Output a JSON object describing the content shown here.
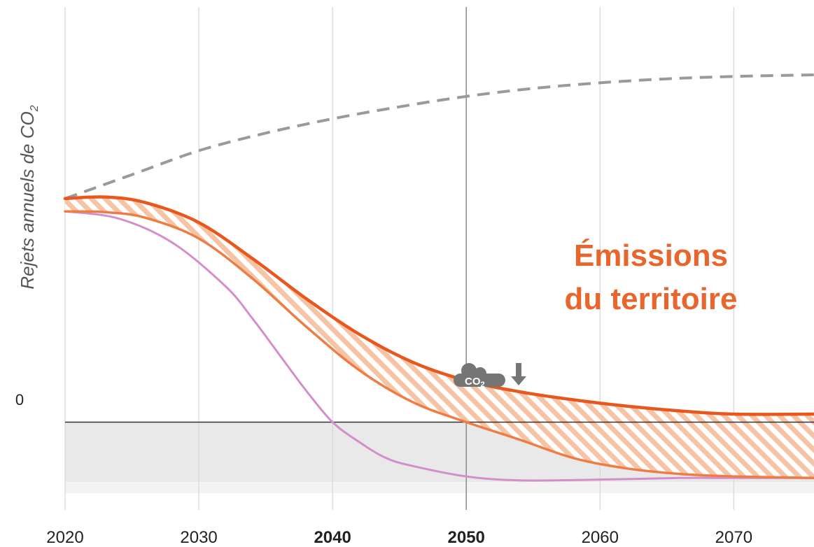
{
  "chart_data": {
    "type": "line",
    "title": "",
    "xlabel": "",
    "ylabel_main": "Rejets annuels de CO",
    "ylabel_sub": "2",
    "y_zero_label": "0",
    "xlim": [
      2020,
      2076
    ],
    "ylim": [
      -1.1,
      5.2
    ],
    "x_ticks": [
      {
        "label": "2020",
        "value": 2020,
        "bold": false
      },
      {
        "label": "2030",
        "value": 2030,
        "bold": false
      },
      {
        "label": "2040",
        "value": 2040,
        "bold": true
      },
      {
        "label": "2050",
        "value": 2050,
        "bold": true
      },
      {
        "label": "2060",
        "value": 2060,
        "bold": false
      },
      {
        "label": "2070",
        "value": 2070,
        "bold": false
      }
    ],
    "grid": true,
    "highlight_gridlines": [
      2050
    ],
    "negative_zone": [
      0,
      -0.75
    ],
    "series": [
      {
        "key": "baseline",
        "style": "dashed",
        "color": "#9a9a9a",
        "x": [
          2020,
          2025,
          2030,
          2035,
          2040,
          2045,
          2050,
          2055,
          2060,
          2065,
          2070,
          2076
        ],
        "y": [
          2.8,
          3.1,
          3.4,
          3.62,
          3.8,
          3.95,
          4.08,
          4.18,
          4.25,
          4.3,
          4.33,
          4.35
        ]
      },
      {
        "key": "emissions",
        "style": "solid",
        "color": "#e8581e",
        "x": [
          2020,
          2023,
          2026,
          2030,
          2034,
          2038,
          2042,
          2046,
          2050,
          2054,
          2058,
          2062,
          2066,
          2070,
          2076
        ],
        "y": [
          2.8,
          2.82,
          2.75,
          2.5,
          2.05,
          1.55,
          1.1,
          0.75,
          0.52,
          0.38,
          0.28,
          0.2,
          0.14,
          0.1,
          0.1
        ]
      },
      {
        "key": "net",
        "style": "solid",
        "color": "#ee7d45",
        "x": [
          2020,
          2023,
          2026,
          2030,
          2034,
          2038,
          2042,
          2046,
          2050,
          2054,
          2058,
          2062,
          2066,
          2070,
          2076
        ],
        "y": [
          2.64,
          2.63,
          2.56,
          2.3,
          1.8,
          1.2,
          0.65,
          0.25,
          0.0,
          -0.22,
          -0.45,
          -0.58,
          -0.65,
          -0.68,
          -0.7
        ]
      },
      {
        "key": "target",
        "style": "solid",
        "color": "#d48ecb",
        "x": [
          2020,
          2024,
          2028,
          2032,
          2034,
          2036,
          2038,
          2040,
          2042,
          2044,
          2046,
          2050,
          2054,
          2060,
          2066,
          2070,
          2076
        ],
        "y": [
          2.64,
          2.55,
          2.25,
          1.7,
          1.3,
          0.85,
          0.4,
          0.0,
          -0.25,
          -0.45,
          -0.55,
          -0.68,
          -0.73,
          -0.72,
          -0.7,
          -0.7,
          -0.7
        ]
      }
    ],
    "hatched_band": {
      "between": [
        "emissions",
        "net"
      ],
      "color": "#f4b08a"
    },
    "annotation": {
      "lines": [
        "Émissions",
        "du territoire"
      ],
      "color": "#e8662d",
      "at": [
        2064,
        1.8
      ]
    },
    "co2_icon": {
      "label": "CO",
      "subscript": "2",
      "direction": "down",
      "color": "#757575",
      "at": [
        2051.5,
        0.28
      ]
    }
  }
}
